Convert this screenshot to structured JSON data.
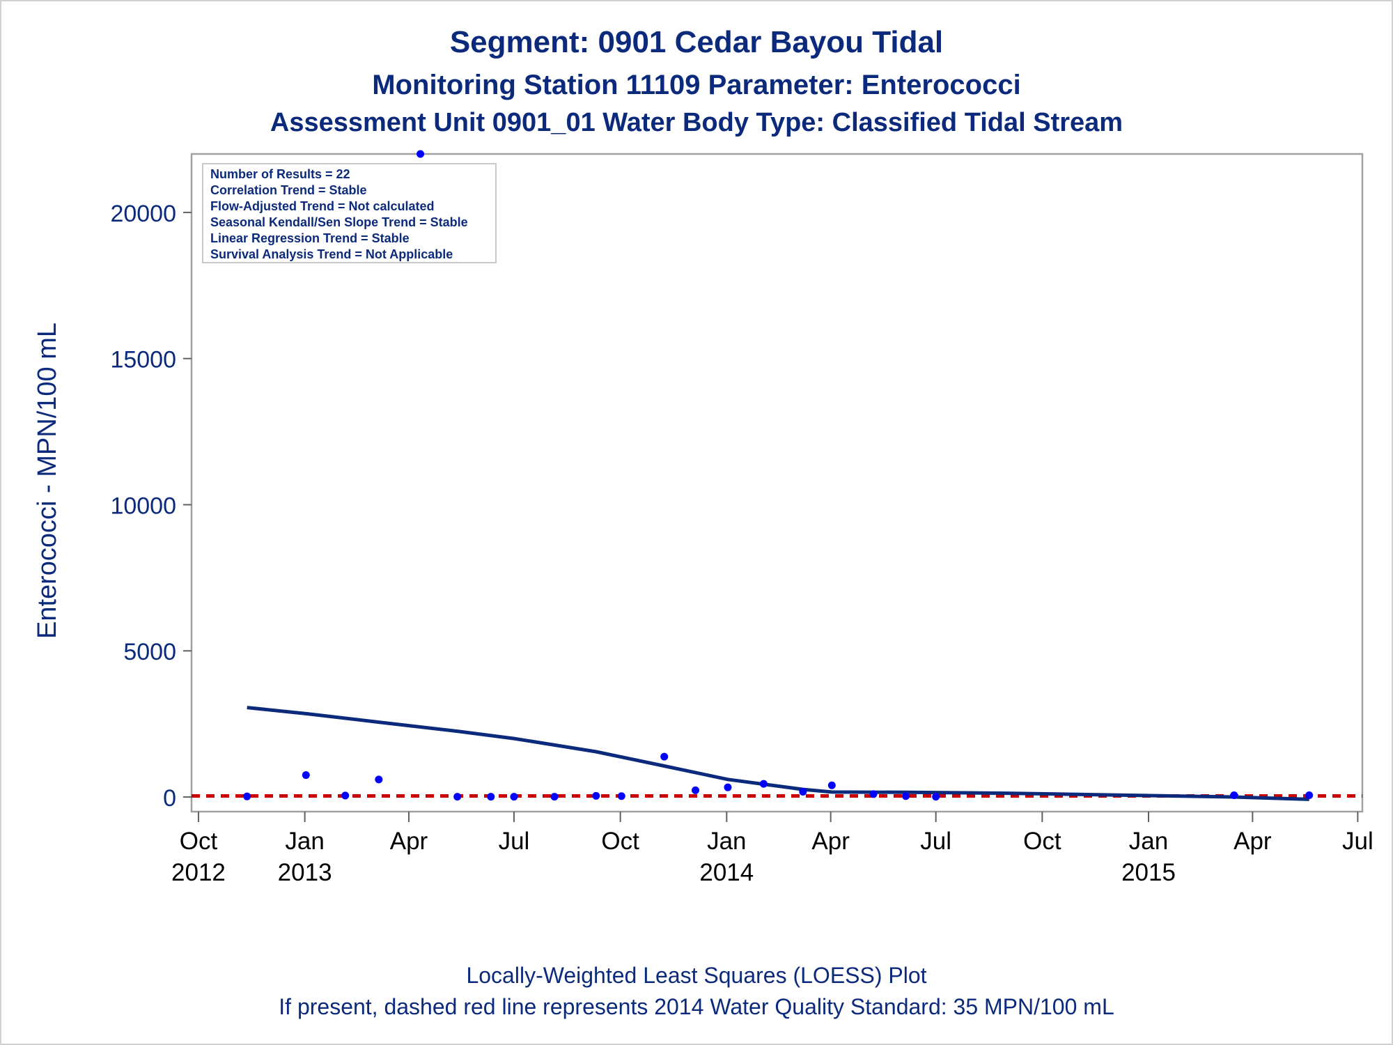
{
  "titles": {
    "line1": "Segment: 0901  Cedar Bayou Tidal",
    "line2": "Monitoring Station 11109 Parameter: Enterococci",
    "line3": "Assessment Unit 0901_01   Water Body Type: Classified Tidal Stream"
  },
  "footnotes": {
    "line1": "Locally-Weighted Least Squares (LOESS) Plot",
    "line2": "If present, dashed red line represents 2014 Water Quality Standard: 35 MPN/100 mL"
  },
  "stats_box": [
    "Number of Results = 22",
    "Correlation Trend = Stable",
    "Flow-Adjusted Trend = Not calculated",
    "Seasonal Kendall/Sen Slope Trend = Stable",
    "Linear Regression Trend = Stable",
    "Survival Analysis Trend = Not Applicable"
  ],
  "colors": {
    "text": "#0c2a7c",
    "points": "#0000ff",
    "loess": "#0c2a7c",
    "standard_line": "#cc0000",
    "frame": "#a0a0a0"
  },
  "chart_data": {
    "type": "scatter",
    "ylabel": "Enterococci - MPN/100 mL",
    "xlabel": "",
    "ylim": [
      -500,
      22000
    ],
    "xlim": [
      "2012-09-25",
      "2015-07-05"
    ],
    "y_ticks": [
      0,
      5000,
      10000,
      15000,
      20000
    ],
    "x_ticks": [
      {
        "date": "2012-10-01",
        "label": "Oct",
        "year": "2012"
      },
      {
        "date": "2013-01-01",
        "label": "Jan",
        "year": "2013"
      },
      {
        "date": "2013-04-01",
        "label": "Apr",
        "year": ""
      },
      {
        "date": "2013-07-01",
        "label": "Jul",
        "year": ""
      },
      {
        "date": "2013-10-01",
        "label": "Oct",
        "year": ""
      },
      {
        "date": "2014-01-01",
        "label": "Jan",
        "year": "2014"
      },
      {
        "date": "2014-04-01",
        "label": "Apr",
        "year": ""
      },
      {
        "date": "2014-07-01",
        "label": "Jul",
        "year": ""
      },
      {
        "date": "2014-10-01",
        "label": "Oct",
        "year": ""
      },
      {
        "date": "2015-01-01",
        "label": "Jan",
        "year": "2015"
      },
      {
        "date": "2015-04-01",
        "label": "Apr",
        "year": ""
      },
      {
        "date": "2015-07-01",
        "label": "Jul",
        "year": ""
      }
    ],
    "points": [
      {
        "x": "2012-11-12",
        "y": 20
      },
      {
        "x": "2013-01-02",
        "y": 750
      },
      {
        "x": "2013-02-05",
        "y": 50
      },
      {
        "x": "2013-03-06",
        "y": 600
      },
      {
        "x": "2013-04-11",
        "y": 22000
      },
      {
        "x": "2013-05-13",
        "y": 10
      },
      {
        "x": "2013-06-11",
        "y": 10
      },
      {
        "x": "2013-07-01",
        "y": 10
      },
      {
        "x": "2013-08-05",
        "y": 10
      },
      {
        "x": "2013-09-10",
        "y": 40
      },
      {
        "x": "2013-10-02",
        "y": 30
      },
      {
        "x": "2013-11-08",
        "y": 1380
      },
      {
        "x": "2013-12-05",
        "y": 230
      },
      {
        "x": "2014-01-02",
        "y": 330
      },
      {
        "x": "2014-02-02",
        "y": 450
      },
      {
        "x": "2014-03-08",
        "y": 180
      },
      {
        "x": "2014-04-02",
        "y": 400
      },
      {
        "x": "2014-05-08",
        "y": 100
      },
      {
        "x": "2014-06-05",
        "y": 30
      },
      {
        "x": "2014-07-01",
        "y": 10
      },
      {
        "x": "2015-03-16",
        "y": 60
      },
      {
        "x": "2015-05-20",
        "y": 60
      }
    ],
    "loess": [
      {
        "x": "2012-11-12",
        "y": 3060
      },
      {
        "x": "2013-01-02",
        "y": 2850
      },
      {
        "x": "2013-03-06",
        "y": 2560
      },
      {
        "x": "2013-05-13",
        "y": 2250
      },
      {
        "x": "2013-07-01",
        "y": 2000
      },
      {
        "x": "2013-09-10",
        "y": 1550
      },
      {
        "x": "2013-11-08",
        "y": 1060
      },
      {
        "x": "2014-01-02",
        "y": 600
      },
      {
        "x": "2014-03-08",
        "y": 260
      },
      {
        "x": "2014-04-02",
        "y": 170
      },
      {
        "x": "2014-06-05",
        "y": 160
      },
      {
        "x": "2014-09-01",
        "y": 130
      },
      {
        "x": "2014-12-01",
        "y": 70
      },
      {
        "x": "2015-03-16",
        "y": 0
      },
      {
        "x": "2015-05-20",
        "y": -80
      }
    ],
    "standard_line": {
      "y": 35,
      "label": "2014 Water Quality Standard: 35 MPN/100 mL"
    }
  }
}
